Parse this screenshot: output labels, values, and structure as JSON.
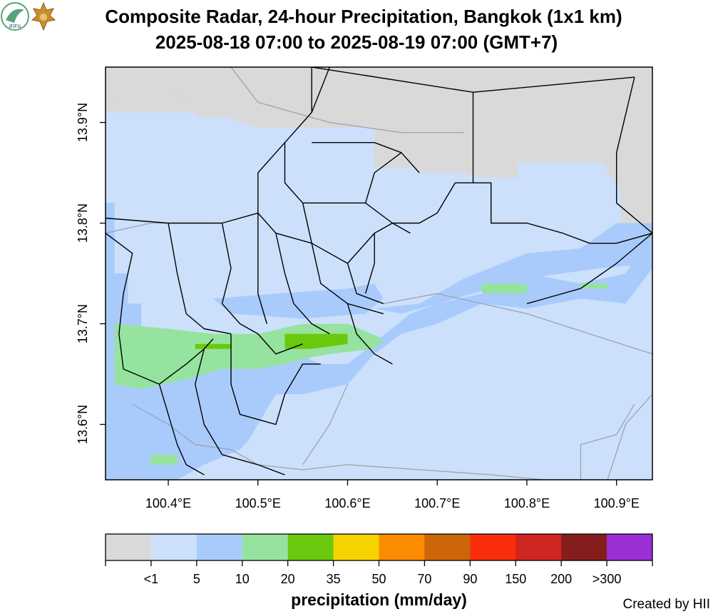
{
  "title_line1": "Composite Radar, 24-hour Precipitation, Bangkok (1x1 km)",
  "title_line2": "2025-08-18 07:00 to 2025-08-19 07:00 (GMT+7)",
  "logos": {
    "left_text": "สสน",
    "left_color": "#5aa37a",
    "right_color": "#c8902a"
  },
  "map": {
    "lon_range": [
      100.33,
      100.94
    ],
    "lat_range": [
      13.545,
      13.955
    ],
    "lon_ticks": [
      {
        "value": 100.4,
        "label": "100.4°E"
      },
      {
        "value": 100.5,
        "label": "100.5°E"
      },
      {
        "value": 100.6,
        "label": "100.6°E"
      },
      {
        "value": 100.7,
        "label": "100.7°E"
      },
      {
        "value": 100.8,
        "label": "100.8°E"
      },
      {
        "value": 100.9,
        "label": "100.9°E"
      }
    ],
    "lat_ticks": [
      {
        "value": 13.6,
        "label": "13.6°N"
      },
      {
        "value": 13.7,
        "label": "13.7°N"
      },
      {
        "value": 13.8,
        "label": "13.8°N"
      },
      {
        "value": 13.9,
        "label": "13.9°N"
      }
    ],
    "no_data_color": "#d9d9d9",
    "zones": [
      {
        "level": "<1",
        "color": "#cce0fc",
        "polygon": [
          [
            100.33,
            13.545
          ],
          [
            100.94,
            13.545
          ],
          [
            100.94,
            13.955
          ],
          [
            100.33,
            13.955
          ]
        ]
      },
      {
        "level": "nodata",
        "color": "#d9d9d9",
        "polygon": [
          [
            100.33,
            13.955
          ],
          [
            100.94,
            13.955
          ],
          [
            100.94,
            13.79
          ],
          [
            100.905,
            13.79
          ],
          [
            100.905,
            13.83
          ],
          [
            100.885,
            13.86
          ],
          [
            100.85,
            13.86
          ],
          [
            100.79,
            13.86
          ],
          [
            100.79,
            13.845
          ],
          [
            100.745,
            13.845
          ],
          [
            100.73,
            13.85
          ],
          [
            100.68,
            13.85
          ],
          [
            100.68,
            13.855
          ],
          [
            100.63,
            13.855
          ],
          [
            100.63,
            13.895
          ],
          [
            100.5,
            13.895
          ],
          [
            100.48,
            13.9
          ],
          [
            100.47,
            13.905
          ],
          [
            100.43,
            13.905
          ],
          [
            100.43,
            13.91
          ],
          [
            100.38,
            13.91
          ],
          [
            100.33,
            13.91
          ]
        ]
      },
      {
        "level": "nodata",
        "color": "#d9d9d9",
        "polygon": [
          [
            100.33,
            13.92
          ],
          [
            100.41,
            13.915
          ],
          [
            100.42,
            13.92
          ],
          [
            100.4,
            13.935
          ],
          [
            100.33,
            13.935
          ]
        ]
      },
      {
        "level": "5",
        "color": "#a9cbfc",
        "polygon": [
          [
            100.33,
            13.82
          ],
          [
            100.34,
            13.82
          ],
          [
            100.34,
            13.75
          ],
          [
            100.355,
            13.75
          ],
          [
            100.355,
            13.72
          ],
          [
            100.37,
            13.72
          ],
          [
            100.37,
            13.68
          ],
          [
            100.43,
            13.68
          ],
          [
            100.43,
            13.67
          ],
          [
            100.52,
            13.67
          ],
          [
            100.52,
            13.68
          ],
          [
            100.57,
            13.66
          ],
          [
            100.6,
            13.66
          ],
          [
            100.67,
            13.71
          ],
          [
            100.7,
            13.72
          ],
          [
            100.75,
            13.73
          ],
          [
            100.8,
            13.75
          ],
          [
            100.86,
            13.74
          ],
          [
            100.91,
            13.75
          ],
          [
            100.94,
            13.79
          ],
          [
            100.94,
            13.755
          ],
          [
            100.91,
            13.72
          ],
          [
            100.86,
            13.725
          ],
          [
            100.8,
            13.715
          ],
          [
            100.75,
            13.72
          ],
          [
            100.7,
            13.7
          ],
          [
            100.66,
            13.69
          ],
          [
            100.63,
            13.67
          ],
          [
            100.6,
            13.64
          ],
          [
            100.55,
            13.63
          ],
          [
            100.52,
            13.63
          ],
          [
            100.51,
            13.615
          ],
          [
            100.5,
            13.6
          ],
          [
            100.49,
            13.585
          ],
          [
            100.48,
            13.575
          ],
          [
            100.44,
            13.56
          ],
          [
            100.42,
            13.55
          ],
          [
            100.41,
            13.545
          ],
          [
            100.33,
            13.545
          ]
        ]
      },
      {
        "level": "5",
        "color": "#a9cbfc",
        "polygon": [
          [
            100.63,
            13.715
          ],
          [
            100.68,
            13.72
          ],
          [
            100.73,
            13.745
          ],
          [
            100.8,
            13.77
          ],
          [
            100.86,
            13.775
          ],
          [
            100.9,
            13.8
          ],
          [
            100.94,
            13.8
          ],
          [
            100.94,
            13.76
          ],
          [
            100.88,
            13.755
          ],
          [
            100.8,
            13.745
          ],
          [
            100.72,
            13.725
          ],
          [
            100.66,
            13.71
          ]
        ]
      },
      {
        "level": "5",
        "color": "#a9cbfc",
        "polygon": [
          [
            100.45,
            13.725
          ],
          [
            100.52,
            13.73
          ],
          [
            100.6,
            13.735
          ],
          [
            100.63,
            13.74
          ],
          [
            100.64,
            13.725
          ],
          [
            100.62,
            13.71
          ],
          [
            100.55,
            13.705
          ],
          [
            100.47,
            13.71
          ]
        ]
      },
      {
        "level": "10",
        "color": "#96e39f",
        "polygon": [
          [
            100.34,
            13.7
          ],
          [
            100.4,
            13.695
          ],
          [
            100.45,
            13.69
          ],
          [
            100.5,
            13.69
          ],
          [
            100.55,
            13.7
          ],
          [
            100.6,
            13.7
          ],
          [
            100.64,
            13.685
          ],
          [
            100.63,
            13.675
          ],
          [
            100.58,
            13.67
          ],
          [
            100.55,
            13.665
          ],
          [
            100.53,
            13.66
          ],
          [
            100.5,
            13.655
          ],
          [
            100.46,
            13.655
          ],
          [
            100.42,
            13.645
          ],
          [
            100.37,
            13.635
          ],
          [
            100.34,
            13.64
          ]
        ]
      },
      {
        "level": "10",
        "color": "#96e39f",
        "polygon": [
          [
            100.75,
            13.74
          ],
          [
            100.8,
            13.74
          ],
          [
            100.8,
            13.73
          ],
          [
            100.75,
            13.73
          ]
        ]
      },
      {
        "level": "10",
        "color": "#96e39f",
        "polygon": [
          [
            100.86,
            13.74
          ],
          [
            100.89,
            13.74
          ],
          [
            100.89,
            13.735
          ],
          [
            100.86,
            13.735
          ]
        ]
      },
      {
        "level": "10",
        "color": "#96e39f",
        "polygon": [
          [
            100.38,
            13.57
          ],
          [
            100.41,
            13.57
          ],
          [
            100.41,
            13.56
          ],
          [
            100.38,
            13.56
          ]
        ]
      },
      {
        "level": "20",
        "color": "#6bc90d",
        "polygon": [
          [
            100.43,
            13.68
          ],
          [
            100.47,
            13.68
          ],
          [
            100.47,
            13.675
          ],
          [
            100.43,
            13.675
          ]
        ]
      },
      {
        "level": "20",
        "color": "#6bc90d",
        "polygon": [
          [
            100.53,
            13.69
          ],
          [
            100.6,
            13.69
          ],
          [
            100.6,
            13.68
          ],
          [
            100.56,
            13.675
          ],
          [
            100.53,
            13.675
          ]
        ]
      }
    ],
    "districts": [
      [
        [
          100.33,
          13.79
        ],
        [
          100.36,
          13.77
        ],
        [
          100.35,
          13.73
        ],
        [
          100.345,
          13.69
        ],
        [
          100.35,
          13.655
        ],
        [
          100.39,
          13.64
        ],
        [
          100.42,
          13.66
        ],
        [
          100.44,
          13.675
        ],
        [
          100.45,
          13.685
        ]
      ],
      [
        [
          100.33,
          13.805
        ],
        [
          100.4,
          13.8
        ],
        [
          100.46,
          13.8
        ],
        [
          100.5,
          13.81
        ],
        [
          100.52,
          13.79
        ],
        [
          100.56,
          13.78
        ],
        [
          100.6,
          13.76
        ],
        [
          100.61,
          13.73
        ],
        [
          100.64,
          13.72
        ]
      ],
      [
        [
          100.4,
          13.8
        ],
        [
          100.41,
          13.75
        ],
        [
          100.42,
          13.71
        ],
        [
          100.44,
          13.695
        ],
        [
          100.47,
          13.69
        ]
      ],
      [
        [
          100.46,
          13.8
        ],
        [
          100.47,
          13.755
        ],
        [
          100.46,
          13.72
        ],
        [
          100.48,
          13.7
        ],
        [
          100.5,
          13.69
        ]
      ],
      [
        [
          100.5,
          13.81
        ],
        [
          100.5,
          13.76
        ],
        [
          100.5,
          13.73
        ],
        [
          100.51,
          13.7
        ]
      ],
      [
        [
          100.52,
          13.79
        ],
        [
          100.53,
          13.75
        ],
        [
          100.54,
          13.72
        ],
        [
          100.56,
          13.7
        ],
        [
          100.58,
          13.69
        ]
      ],
      [
        [
          100.56,
          13.78
        ],
        [
          100.57,
          13.74
        ],
        [
          100.6,
          13.72
        ],
        [
          100.64,
          13.71
        ]
      ],
      [
        [
          100.5,
          13.81
        ],
        [
          100.5,
          13.85
        ],
        [
          100.53,
          13.88
        ],
        [
          100.56,
          13.91
        ],
        [
          100.56,
          13.955
        ]
      ],
      [
        [
          100.56,
          13.91
        ],
        [
          100.58,
          13.955
        ]
      ],
      [
        [
          100.56,
          13.88
        ],
        [
          100.63,
          13.88
        ],
        [
          100.66,
          13.87
        ],
        [
          100.68,
          13.85
        ]
      ],
      [
        [
          100.53,
          13.88
        ],
        [
          100.53,
          13.84
        ],
        [
          100.55,
          13.82
        ],
        [
          100.56,
          13.78
        ]
      ],
      [
        [
          100.55,
          13.82
        ],
        [
          100.62,
          13.82
        ],
        [
          100.65,
          13.8
        ],
        [
          100.67,
          13.79
        ]
      ],
      [
        [
          100.62,
          13.82
        ],
        [
          100.63,
          13.85
        ],
        [
          100.66,
          13.87
        ]
      ],
      [
        [
          100.6,
          13.76
        ],
        [
          100.63,
          13.79
        ],
        [
          100.65,
          13.8
        ]
      ],
      [
        [
          100.63,
          13.79
        ],
        [
          100.63,
          13.76
        ],
        [
          100.62,
          13.73
        ]
      ],
      [
        [
          100.65,
          13.8
        ],
        [
          100.68,
          13.8
        ],
        [
          100.7,
          13.81
        ]
      ],
      [
        [
          100.7,
          13.81
        ],
        [
          100.72,
          13.84
        ],
        [
          100.74,
          13.84
        ],
        [
          100.76,
          13.84
        ],
        [
          100.76,
          13.8
        ],
        [
          100.8,
          13.8
        ],
        [
          100.84,
          13.79
        ],
        [
          100.87,
          13.78
        ],
        [
          100.9,
          13.78
        ],
        [
          100.94,
          13.79
        ]
      ],
      [
        [
          100.74,
          13.84
        ],
        [
          100.74,
          13.93
        ],
        [
          100.92,
          13.945
        ]
      ],
      [
        [
          100.92,
          13.945
        ],
        [
          100.9,
          13.87
        ],
        [
          100.9,
          13.82
        ],
        [
          100.94,
          13.79
        ]
      ],
      [
        [
          100.94,
          13.79
        ],
        [
          100.9,
          13.76
        ],
        [
          100.86,
          13.735
        ],
        [
          100.8,
          13.72
        ]
      ],
      [
        [
          100.56,
          13.955
        ],
        [
          100.74,
          13.93
        ]
      ],
      [
        [
          100.44,
          13.675
        ],
        [
          100.43,
          13.64
        ],
        [
          100.44,
          13.6
        ],
        [
          100.46,
          13.57
        ],
        [
          100.5,
          13.56
        ],
        [
          100.53,
          13.55
        ]
      ],
      [
        [
          100.47,
          13.69
        ],
        [
          100.47,
          13.64
        ],
        [
          100.48,
          13.61
        ],
        [
          100.52,
          13.6
        ],
        [
          100.53,
          13.63
        ],
        [
          100.55,
          13.66
        ],
        [
          100.57,
          13.66
        ]
      ],
      [
        [
          100.39,
          13.64
        ],
        [
          100.4,
          13.61
        ],
        [
          100.41,
          13.58
        ],
        [
          100.42,
          13.56
        ],
        [
          100.44,
          13.55
        ]
      ],
      [
        [
          100.5,
          13.69
        ],
        [
          100.52,
          13.67
        ],
        [
          100.55,
          13.68
        ]
      ],
      [
        [
          100.6,
          13.72
        ],
        [
          100.61,
          13.69
        ],
        [
          100.63,
          13.67
        ],
        [
          100.65,
          13.66
        ]
      ]
    ],
    "overlay_lines": [
      [
        [
          100.33,
          13.79
        ],
        [
          100.38,
          13.8
        ],
        [
          100.45,
          13.8
        ]
      ],
      [
        [
          100.47,
          13.955
        ],
        [
          100.5,
          13.92
        ],
        [
          100.58,
          13.9
        ],
        [
          100.66,
          13.89
        ],
        [
          100.73,
          13.89
        ]
      ],
      [
        [
          100.64,
          13.72
        ],
        [
          100.7,
          13.73
        ],
        [
          100.8,
          13.71
        ],
        [
          100.87,
          13.69
        ],
        [
          100.94,
          13.67
        ]
      ],
      [
        [
          100.36,
          13.62
        ],
        [
          100.4,
          13.6
        ],
        [
          100.43,
          13.58
        ],
        [
          100.47,
          13.575
        ]
      ],
      [
        [
          100.47,
          13.575
        ],
        [
          100.5,
          13.56
        ],
        [
          100.55,
          13.555
        ],
        [
          100.6,
          13.56
        ],
        [
          100.68,
          13.555
        ],
        [
          100.76,
          13.55
        ],
        [
          100.82,
          13.545
        ]
      ],
      [
        [
          100.89,
          13.545
        ],
        [
          100.91,
          13.6
        ],
        [
          100.94,
          13.63
        ]
      ],
      [
        [
          100.86,
          13.545
        ],
        [
          100.86,
          13.58
        ],
        [
          100.9,
          13.59
        ],
        [
          100.92,
          13.62
        ]
      ],
      [
        [
          100.55,
          13.56
        ],
        [
          100.58,
          13.6
        ],
        [
          100.6,
          13.64
        ]
      ]
    ]
  },
  "colorbar": {
    "title": "precipitation (mm/day)",
    "colors": [
      "#d9d9d9",
      "#cce0fc",
      "#a9cbfc",
      "#96e39f",
      "#6bc90d",
      "#f5d300",
      "#fb8c00",
      "#cc6608",
      "#fa2e0d",
      "#d02622",
      "#861d1d",
      "#9a30d6"
    ],
    "labels": [
      "<1",
      "5",
      "10",
      "20",
      "35",
      "50",
      "70",
      "90",
      "150",
      "200",
      ">300"
    ]
  },
  "credit": "Created by HII"
}
